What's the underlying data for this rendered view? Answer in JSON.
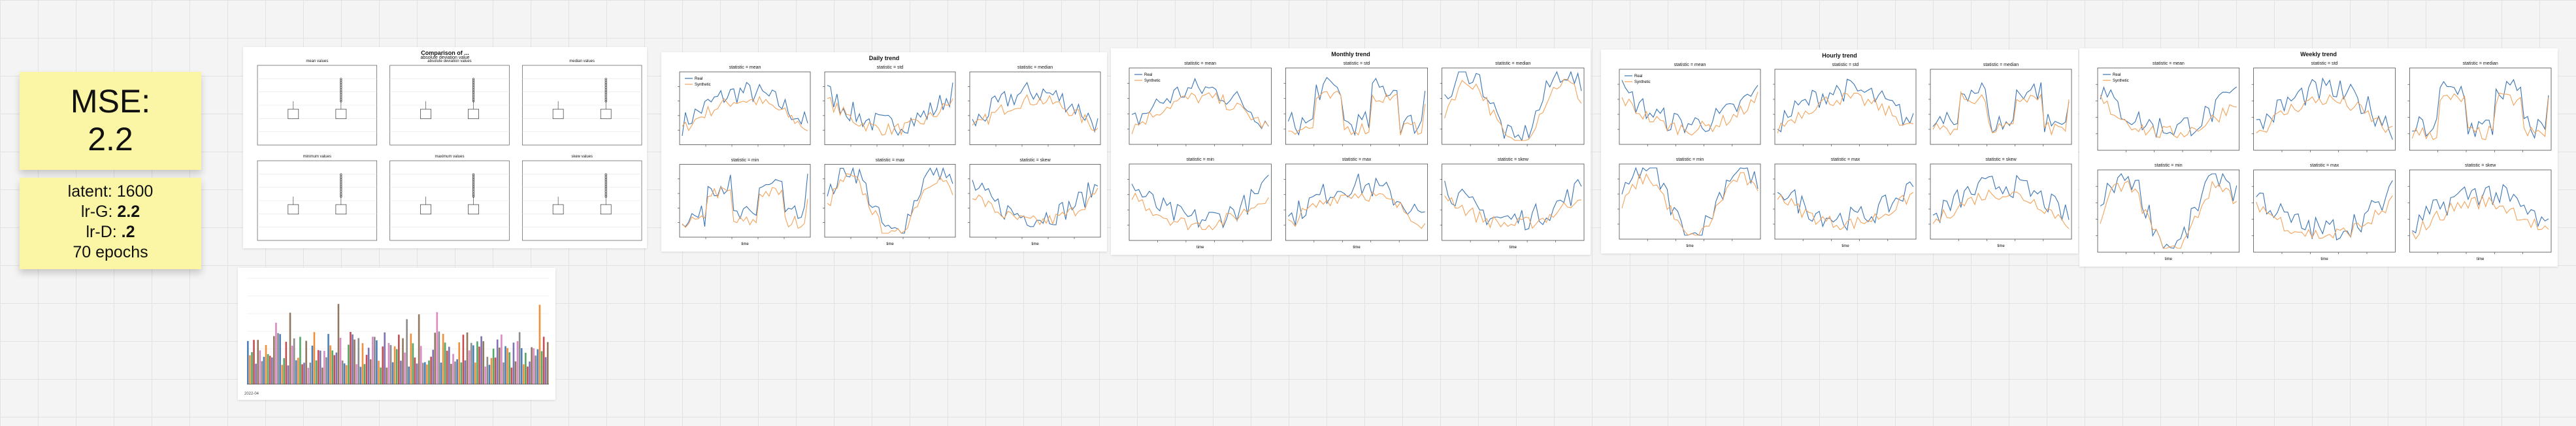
{
  "note_main": {
    "line1": "MSE:",
    "line2": "2.2"
  },
  "note_params": {
    "latent": "latent: 1600",
    "lrg_label": "lr-G: ",
    "lrg_value": "2.2",
    "lrd_label": "lr-D: ",
    "lrd_value": ".2",
    "epochs": "70 epochs"
  },
  "panels": {
    "boxplots": {
      "title": "Comparison of ...",
      "subtitle": "absolute deviation value",
      "subplots": [
        "mean values",
        "absolute deviation values",
        "median values",
        "minimum values",
        "maximum values",
        "skew values"
      ]
    },
    "daily": {
      "title": "Daily trend",
      "xlabel": "time",
      "subplots": [
        "statistic = mean",
        "statistic = std",
        "statistic = median",
        "statistic = min",
        "statistic = max",
        "statistic = skew"
      ]
    },
    "monthly": {
      "title": "Monthly trend",
      "xlabel": "time",
      "subplots": [
        "statistic = mean",
        "statistic = std",
        "statistic = median",
        "statistic = min",
        "statistic = max",
        "statistic = skew"
      ]
    },
    "hourly": {
      "title": "Hourly trend",
      "xlabel": "time",
      "subplots": [
        "statistic = mean",
        "statistic = std",
        "statistic = median",
        "statistic = min",
        "statistic = max",
        "statistic = skew"
      ]
    },
    "weekly": {
      "title": "Weekly trend",
      "xlabel": "time",
      "subplots": [
        "statistic = mean",
        "statistic = std",
        "statistic = median",
        "statistic = min",
        "statistic = max",
        "statistic = skew"
      ]
    },
    "histogram": {
      "footer": "2022-04"
    }
  },
  "legend": {
    "real": "Real",
    "synthetic": "Synthetic"
  },
  "colors": {
    "real": "#3a74b4",
    "synthetic": "#f2a35b",
    "bars": [
      "#4d7fb8",
      "#f08f3c",
      "#55a868",
      "#c44e52",
      "#8172b2",
      "#937860",
      "#da8bc3",
      "#8c8c8c"
    ]
  }
}
